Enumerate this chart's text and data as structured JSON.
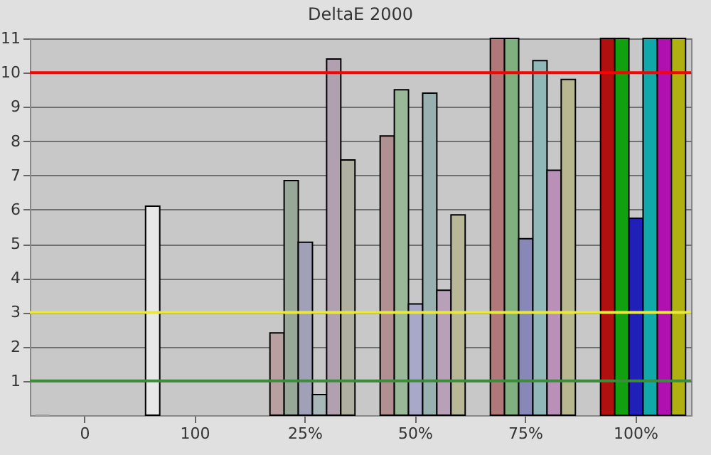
{
  "chart_data": {
    "type": "bar",
    "title": "DeltaE 2000",
    "categories": [
      "0",
      "100",
      "25%",
      "50%",
      "75%",
      "100%"
    ],
    "series": [
      {
        "colors": [
          "#a0a0a0",
          "#e8e8e8",
          null,
          null,
          null,
          null
        ],
        "values": [
          0,
          6.1,
          null,
          null,
          null,
          null
        ]
      },
      {
        "colors": [
          null,
          null,
          "#b8a0a0",
          "#b09090",
          "#b07878",
          "#b01010"
        ],
        "values": [
          null,
          null,
          2.4,
          8.15,
          11,
          11
        ]
      },
      {
        "colors": [
          null,
          null,
          "#98a898",
          "#98b898",
          "#80b080",
          "#10a010"
        ],
        "values": [
          null,
          null,
          6.85,
          9.5,
          11,
          11
        ]
      },
      {
        "colors": [
          null,
          null,
          "#a0a0b8",
          "#a8a8c8",
          "#8888b8",
          "#2020b8"
        ],
        "values": [
          null,
          null,
          5.05,
          3.25,
          5.15,
          5.75
        ]
      },
      {
        "colors": [
          null,
          null,
          "#a8b8b8",
          "#98b0b0",
          "#90b8b8",
          "#10a8a8"
        ],
        "values": [
          null,
          null,
          0.6,
          9.4,
          10.35,
          11
        ]
      },
      {
        "colors": [
          null,
          null,
          "#b0a0b0",
          "#b8a0b8",
          "#b890b8",
          "#b010b0"
        ],
        "values": [
          null,
          null,
          10.4,
          3.65,
          7.15,
          11
        ]
      },
      {
        "colors": [
          null,
          null,
          "#b0b0a0",
          "#b8b898",
          "#b8b890",
          "#b0b010"
        ],
        "values": [
          null,
          null,
          7.45,
          5.85,
          9.8,
          11
        ]
      }
    ],
    "ylim": [
      0,
      11
    ],
    "yticks": [
      1,
      2,
      3,
      4,
      5,
      6,
      7,
      8,
      9,
      10,
      11
    ],
    "grid": "y",
    "ref_lines": [
      {
        "axis": "y",
        "value": 10,
        "color": "#ff0000"
      },
      {
        "axis": "y",
        "value": 3,
        "color": "#e8e840"
      },
      {
        "axis": "y",
        "value": 1,
        "color": "#3c8c3c"
      }
    ]
  }
}
